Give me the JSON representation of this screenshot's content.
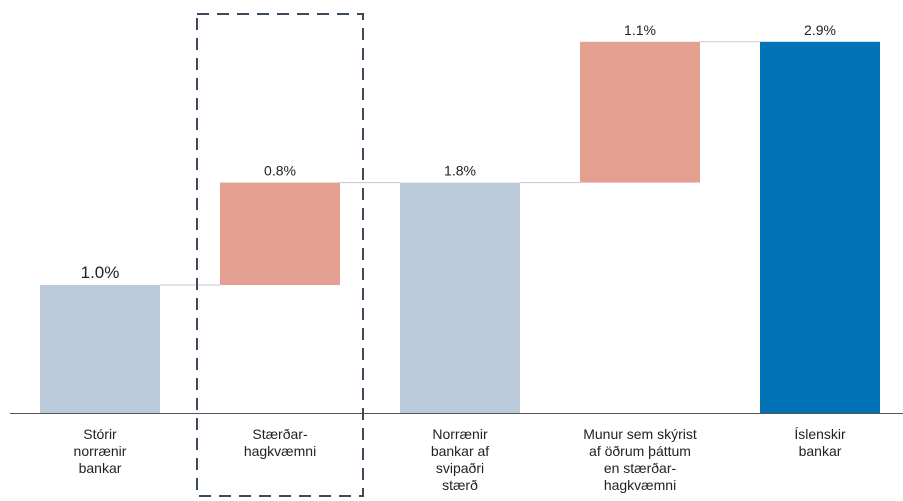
{
  "chart_data": {
    "type": "bar",
    "subtype": "waterfall",
    "ylim": [
      0,
      3.0
    ],
    "grid": false,
    "legend": "none",
    "bars": [
      {
        "category": [
          "Stórir",
          "norrænir",
          "bankar"
        ],
        "base": 0,
        "value": 1.0,
        "label": "1.0%",
        "kind": "total",
        "color": "#bccbdc"
      },
      {
        "category": [
          "Stærðar-",
          "hagkvæmni"
        ],
        "base": 1.0,
        "value": 0.8,
        "label": "0.8%",
        "kind": "increase",
        "color": "#e3a091",
        "highlighted": true
      },
      {
        "category": [
          "Norrænir",
          "bankar af",
          "svipaðri",
          "stærð"
        ],
        "base": 0,
        "value": 1.8,
        "label": "1.8%",
        "kind": "total",
        "color": "#bccbdc"
      },
      {
        "category": [
          "Munur sem skýrist",
          "af öðrum þáttum",
          "en stærðar-",
          "hagkvæmni"
        ],
        "base": 1.8,
        "value": 1.1,
        "label": "1.1%",
        "kind": "increase",
        "color": "#e3a091"
      },
      {
        "category": [
          "Íslenskir",
          "bankar"
        ],
        "base": 0,
        "value": 2.9,
        "label": "2.9%",
        "kind": "total",
        "color": "#0072b5"
      }
    ],
    "colors": {
      "axis": "#555555",
      "connector": "#c8c8c8",
      "highlight_box": "#3b4a5c"
    }
  }
}
